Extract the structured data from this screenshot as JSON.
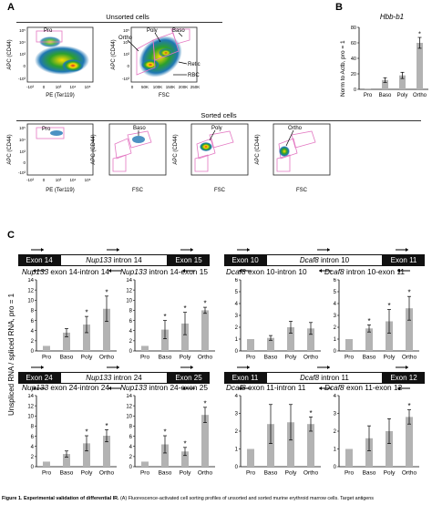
{
  "panelA": {
    "letter": "A",
    "unsorted_title": "Unsorted cells",
    "sorted_title": "Sorted cells",
    "y_label_apc": "APC (CD44)",
    "x_label_pe": "PE (Ter119)",
    "x_label_fsc": "FSC",
    "gate_pro": "Pro",
    "gate_baso": "Baso",
    "gate_poly": "Poly",
    "gate_ortho": "Ortho",
    "gate_retic": "Retic",
    "gate_rbc": "RBC",
    "log_ticks": [
      "10⁵",
      "10⁴",
      "10³",
      "0",
      "-10³"
    ],
    "pe_ticks": [
      "-10³",
      "0",
      "10³",
      "10⁴",
      "10⁵"
    ],
    "fsc_ticks": [
      "0",
      "50K",
      "100K",
      "150K",
      "200K",
      "250K"
    ]
  },
  "panelB": {
    "letter": "B",
    "title": "Hbb-b1",
    "ylabel": "Norm to Actb, pro = 1",
    "chart_data": {
      "type": "bar",
      "title": "Hbb-b1",
      "ylabel": "Norm to Actb, pro = 1",
      "categories": [
        "Pro",
        "Baso",
        "Poly",
        "Ortho"
      ],
      "values": [
        1,
        12,
        18,
        60
      ],
      "errors": [
        0,
        3,
        4,
        7
      ],
      "significant": [
        false,
        false,
        false,
        true
      ],
      "ylim": [
        0,
        80
      ],
      "yticks": [
        0,
        20,
        40,
        60,
        80
      ]
    }
  },
  "panelC": {
    "letter": "C",
    "ylabel": "Unspliced RNA / spliced RNA, pro = 1",
    "gene_structures": [
      {
        "left_exon": "Exon 14",
        "intron_gene": "Nup133",
        "intron_rest": " intron 14",
        "right_exon": "Exon 15"
      },
      {
        "left_exon": "Exon 10",
        "intron_gene": "Dcaf8",
        "intron_rest": " intron 10",
        "right_exon": "Exon 11"
      },
      {
        "left_exon": "Exon 24",
        "intron_gene": "Nup133",
        "intron_rest": " intron 24",
        "right_exon": "Exon 25"
      },
      {
        "left_exon": "Exon 11",
        "intron_gene": "Dcaf8",
        "intron_rest": " intron 11",
        "right_exon": "Exon 12"
      }
    ],
    "chart_data": [
      {
        "type": "bar",
        "gene": "Nup133",
        "title_rest": " exon 14-intron 14",
        "categories": [
          "Pro",
          "Baso",
          "Poly",
          "Ortho"
        ],
        "values": [
          1,
          3.6,
          5.2,
          8.3
        ],
        "errors": [
          0,
          0.8,
          1.6,
          2.5
        ],
        "significant": [
          false,
          false,
          true,
          true
        ],
        "ylim": [
          0,
          14
        ],
        "yticks": [
          0,
          2,
          4,
          6,
          8,
          10,
          12,
          14
        ]
      },
      {
        "type": "bar",
        "gene": "Nup133",
        "title_rest": " intron 14-exon 15",
        "categories": [
          "Pro",
          "Baso",
          "Poly",
          "Ortho"
        ],
        "values": [
          1,
          4.2,
          5.4,
          8.0
        ],
        "errors": [
          0,
          1.8,
          2.2,
          0.6
        ],
        "significant": [
          false,
          true,
          true,
          true
        ],
        "ylim": [
          0,
          14
        ],
        "yticks": [
          0,
          2,
          4,
          6,
          8,
          10,
          12,
          14
        ]
      },
      {
        "type": "bar",
        "gene": "Dcaf8",
        "title_rest": " exon 10-intron 10",
        "categories": [
          "Pro",
          "Baso",
          "Poly",
          "Ortho"
        ],
        "values": [
          1,
          1.1,
          2.0,
          1.9
        ],
        "errors": [
          0,
          0.2,
          0.5,
          0.5
        ],
        "significant": [
          false,
          false,
          false,
          false
        ],
        "ylim": [
          0,
          6
        ],
        "yticks": [
          0,
          1,
          2,
          3,
          4,
          5,
          6
        ]
      },
      {
        "type": "bar",
        "gene": "Dcaf8",
        "title_rest": " intron 10-exon 11",
        "categories": [
          "Pro",
          "Baso",
          "Poly",
          "Ortho"
        ],
        "values": [
          1,
          1.9,
          2.5,
          3.6
        ],
        "errors": [
          0,
          0.3,
          1.0,
          1.0
        ],
        "significant": [
          false,
          true,
          true,
          true
        ],
        "ylim": [
          0,
          6
        ],
        "yticks": [
          0,
          1,
          2,
          3,
          4,
          5,
          6
        ]
      },
      {
        "type": "bar",
        "gene": "Nup133",
        "title_rest": " exon 24-intron 24",
        "categories": [
          "Pro",
          "Baso",
          "Poly",
          "Ortho"
        ],
        "values": [
          1,
          2.5,
          4.6,
          6.1
        ],
        "errors": [
          0,
          0.6,
          1.5,
          1.2
        ],
        "significant": [
          false,
          false,
          true,
          true
        ],
        "ylim": [
          0,
          14
        ],
        "yticks": [
          0,
          2,
          4,
          6,
          8,
          10,
          12,
          14
        ]
      },
      {
        "type": "bar",
        "gene": "Nup133",
        "title_rest": " intron 24-exon 25",
        "categories": [
          "Pro",
          "Baso",
          "Poly",
          "Ortho"
        ],
        "values": [
          1,
          4.4,
          3.0,
          10.2
        ],
        "errors": [
          0,
          1.7,
          0.8,
          1.5
        ],
        "significant": [
          false,
          true,
          true,
          true
        ],
        "ylim": [
          0,
          14
        ],
        "yticks": [
          0,
          2,
          4,
          6,
          8,
          10,
          12,
          14
        ]
      },
      {
        "type": "bar",
        "gene": "Dcaf8",
        "title_rest": " exon 11-intron 11",
        "categories": [
          "Pro",
          "Baso",
          "Poly",
          "Ortho"
        ],
        "values": [
          1,
          2.4,
          2.5,
          2.4
        ],
        "errors": [
          0,
          1.1,
          1.0,
          0.4
        ],
        "significant": [
          false,
          false,
          false,
          true
        ],
        "ylim": [
          0,
          4
        ],
        "yticks": [
          0,
          1,
          2,
          3,
          4
        ]
      },
      {
        "type": "bar",
        "gene": "Dcaf8",
        "title_rest": " exon 11-exon 12",
        "categories": [
          "Pro",
          "Baso",
          "Poly",
          "Ortho"
        ],
        "values": [
          1,
          1.6,
          2.0,
          2.8
        ],
        "errors": [
          0,
          0.7,
          0.7,
          0.4
        ],
        "significant": [
          false,
          false,
          false,
          true
        ],
        "ylim": [
          0,
          4
        ],
        "yticks": [
          0,
          1,
          2,
          3,
          4
        ]
      }
    ]
  },
  "caption": {
    "label": "Figure 1. Experimental validation of differential IR.",
    "text": " (A) Fluorescence-activated cell sorting profiles of unsorted and sorted murine erythroid marrow cells. Target antigens"
  }
}
